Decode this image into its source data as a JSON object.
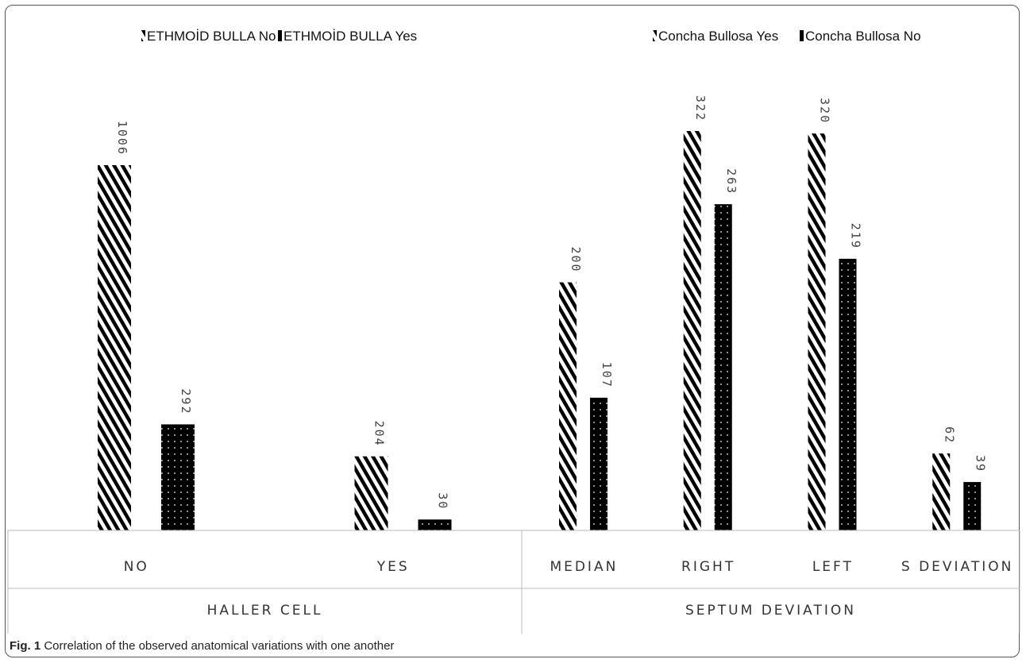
{
  "caption": {
    "label": "Fig. 1",
    "text": "Correlation of the observed anatomical variations with one another"
  },
  "colors": {
    "bar_fill": "#000000",
    "stripe_bg": "#ffffff",
    "dot": "#ffffff",
    "axis": "#bbbbbb",
    "frame": "#555555"
  },
  "chart_data": [
    {
      "type": "bar",
      "title": "",
      "group_label": "HALLER CELL",
      "categories": [
        "NO",
        "YES"
      ],
      "legend_position": "top",
      "series": [
        {
          "name": "ETHMOİD BULLA No",
          "pattern": "diagonal-stripes",
          "values": [
            1006,
            204
          ]
        },
        {
          "name": "ETHMOİD BULLA Yes",
          "pattern": "dots",
          "values": [
            292,
            30
          ]
        }
      ],
      "data_labels": true,
      "grid": false
    },
    {
      "type": "bar",
      "title": "",
      "group_label": "SEPTUM DEVIATION",
      "categories": [
        "MEDIAN",
        "RIGHT",
        "LEFT",
        "S DEVIATION"
      ],
      "legend_position": "top",
      "series": [
        {
          "name": "Concha Bullosa Yes",
          "pattern": "diagonal-stripes",
          "values": [
            200,
            322,
            320,
            62
          ]
        },
        {
          "name": "Concha Bullosa No",
          "pattern": "dots",
          "values": [
            107,
            263,
            219,
            39
          ]
        }
      ],
      "data_labels": true,
      "grid": false
    }
  ]
}
